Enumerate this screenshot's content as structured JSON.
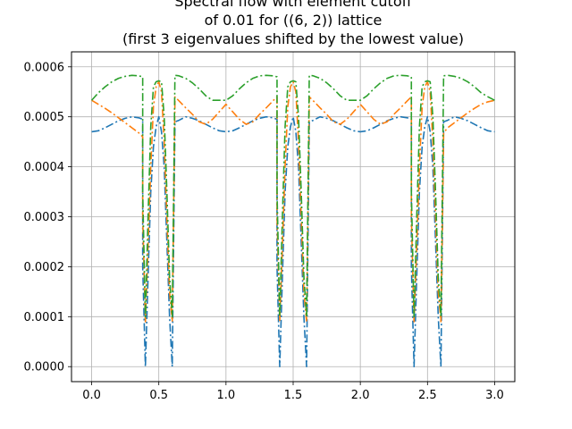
{
  "chart_data": {
    "type": "line",
    "title_lines": [
      "Spectral flow with element cutoff",
      "of 0.01 for ((6, 2)) lattice",
      "(first 3 eigenvalues shifted by the lowest value)"
    ],
    "xlabel": "",
    "ylabel": "",
    "xlim": [
      -0.15,
      3.15
    ],
    "ylim": [
      -3e-05,
      0.00063
    ],
    "x_ticks": [
      "0.0",
      "0.5",
      "1.0",
      "1.5",
      "2.0",
      "2.5",
      "3.0"
    ],
    "x_tick_values": [
      0.0,
      0.5,
      1.0,
      1.5,
      2.0,
      2.5,
      3.0
    ],
    "y_ticks": [
      "0.0000",
      "0.0001",
      "0.0002",
      "0.0003",
      "0.0004",
      "0.0005",
      "0.0006"
    ],
    "y_tick_values": [
      0.0,
      0.0001,
      0.0002,
      0.0003,
      0.0004,
      0.0005,
      0.0006
    ],
    "grid": true,
    "line_style": "dash-dot",
    "series_colors": [
      "#1f77b4",
      "#ff7f0e",
      "#2ca02c"
    ],
    "series": [
      {
        "x": [
          0.0,
          0.05,
          0.1,
          0.15,
          0.2,
          0.25,
          0.3,
          0.35,
          0.38,
          0.38,
          0.4,
          0.42,
          0.44,
          0.46,
          0.48,
          0.5,
          0.52,
          0.54,
          0.56,
          0.58,
          0.6,
          0.62,
          0.62,
          0.65,
          0.7,
          0.75,
          0.8,
          0.85,
          0.9,
          0.95,
          1.0,
          1.05,
          1.1,
          1.15,
          1.2,
          1.25,
          1.3,
          1.35,
          1.38,
          1.38,
          1.4,
          1.42,
          1.44,
          1.46,
          1.48,
          1.5,
          1.52,
          1.54,
          1.56,
          1.58,
          1.6,
          1.62,
          1.62,
          1.65,
          1.7,
          1.75,
          1.8,
          1.85,
          1.9,
          1.95,
          2.0,
          2.05,
          2.1,
          2.15,
          2.2,
          2.25,
          2.3,
          2.35,
          2.38,
          2.38,
          2.4,
          2.42,
          2.44,
          2.46,
          2.48,
          2.5,
          2.52,
          2.54,
          2.56,
          2.58,
          2.6,
          2.62,
          2.62,
          2.65,
          2.7,
          2.75,
          2.8,
          2.85,
          2.9,
          2.95,
          3.0
        ],
        "values": [
          0.00047,
          0.000472,
          0.000478,
          0.000485,
          0.000492,
          0.000497,
          0.0005,
          0.000498,
          0.000495,
          0.0002,
          0.0,
          0.00018,
          0.00035,
          0.00044,
          0.00048,
          0.0005,
          0.00047,
          0.0004,
          0.00025,
          0.0001,
          0.0,
          0.00048,
          0.00049,
          0.000493,
          0.0005,
          0.000497,
          0.000492,
          0.000485,
          0.000478,
          0.000472,
          0.00047,
          0.000472,
          0.000478,
          0.000485,
          0.000492,
          0.000497,
          0.0005,
          0.000498,
          0.000495,
          0.0002,
          0.0,
          0.00018,
          0.00035,
          0.00044,
          0.00048,
          0.0005,
          0.00047,
          0.0004,
          0.00025,
          0.0001,
          0.0,
          0.00048,
          0.00049,
          0.000493,
          0.0005,
          0.000497,
          0.000492,
          0.000485,
          0.000478,
          0.000472,
          0.00047,
          0.000472,
          0.000478,
          0.000485,
          0.000492,
          0.000497,
          0.0005,
          0.000498,
          0.000495,
          0.0002,
          0.0,
          0.00018,
          0.00035,
          0.00044,
          0.00048,
          0.0005,
          0.00047,
          0.0004,
          0.00025,
          0.0001,
          0.0,
          0.00048,
          0.00049,
          0.000493,
          0.0005,
          0.000497,
          0.000492,
          0.000485,
          0.000478,
          0.000472,
          0.00047
        ]
      },
      {
        "x": [
          0.0,
          0.05,
          0.1,
          0.15,
          0.2,
          0.25,
          0.3,
          0.35,
          0.38,
          0.38,
          0.4,
          0.42,
          0.44,
          0.46,
          0.48,
          0.5,
          0.52,
          0.54,
          0.56,
          0.58,
          0.6,
          0.62,
          0.62,
          0.65,
          0.7,
          0.75,
          0.8,
          0.85,
          0.9,
          0.95,
          1.0,
          1.05,
          1.1,
          1.15,
          1.2,
          1.25,
          1.3,
          1.35,
          1.38,
          1.38,
          1.4,
          1.42,
          1.44,
          1.46,
          1.48,
          1.5,
          1.52,
          1.54,
          1.56,
          1.58,
          1.6,
          1.62,
          1.62,
          1.65,
          1.7,
          1.75,
          1.8,
          1.85,
          1.9,
          1.95,
          2.0,
          2.05,
          2.1,
          2.15,
          2.2,
          2.25,
          2.3,
          2.35,
          2.38,
          2.38,
          2.4,
          2.42,
          2.44,
          2.46,
          2.48,
          2.5,
          2.52,
          2.54,
          2.56,
          2.58,
          2.6,
          2.62,
          2.62,
          2.65,
          2.7,
          2.75,
          2.8,
          2.85,
          2.9,
          2.95,
          3.0
        ],
        "values": [
          0.000533,
          0.000525,
          0.000517,
          0.000508,
          0.000498,
          0.000488,
          0.000478,
          0.000468,
          0.00046,
          0.0003,
          9e-05,
          0.00024,
          0.0004,
          0.00052,
          0.00056,
          0.00057,
          0.00055,
          0.00045,
          0.0003,
          0.00015,
          9e-05,
          0.00053,
          0.00054,
          0.000532,
          0.000518,
          0.000505,
          0.00049,
          0.000485,
          0.000495,
          0.00051,
          0.000525,
          0.00051,
          0.000495,
          0.000485,
          0.00049,
          0.000505,
          0.000518,
          0.000532,
          0.00054,
          0.0003,
          9e-05,
          0.00024,
          0.0004,
          0.00052,
          0.00056,
          0.00057,
          0.00055,
          0.00045,
          0.0003,
          0.00015,
          9e-05,
          0.00053,
          0.00054,
          0.000532,
          0.000518,
          0.000505,
          0.00049,
          0.000485,
          0.000495,
          0.00051,
          0.000525,
          0.00051,
          0.000495,
          0.000485,
          0.00049,
          0.000505,
          0.000518,
          0.000532,
          0.00054,
          0.0003,
          9e-05,
          0.00024,
          0.0004,
          0.00052,
          0.00056,
          0.00057,
          0.00055,
          0.00045,
          0.0003,
          0.00015,
          9e-05,
          0.00046,
          0.000468,
          0.000478,
          0.000488,
          0.000498,
          0.000508,
          0.000517,
          0.000525,
          0.00053,
          0.000533
        ]
      },
      {
        "x": [
          0.0,
          0.05,
          0.1,
          0.15,
          0.2,
          0.25,
          0.3,
          0.35,
          0.38,
          0.38,
          0.4,
          0.42,
          0.44,
          0.46,
          0.48,
          0.5,
          0.52,
          0.54,
          0.56,
          0.58,
          0.6,
          0.62,
          0.62,
          0.65,
          0.7,
          0.75,
          0.8,
          0.85,
          0.9,
          0.95,
          1.0,
          1.05,
          1.1,
          1.15,
          1.2,
          1.25,
          1.3,
          1.35,
          1.38,
          1.38,
          1.4,
          1.42,
          1.44,
          1.46,
          1.48,
          1.5,
          1.52,
          1.54,
          1.56,
          1.58,
          1.6,
          1.62,
          1.62,
          1.65,
          1.7,
          1.75,
          1.8,
          1.85,
          1.9,
          1.95,
          2.0,
          2.05,
          2.1,
          2.15,
          2.2,
          2.25,
          2.3,
          2.35,
          2.38,
          2.38,
          2.4,
          2.42,
          2.44,
          2.46,
          2.48,
          2.5,
          2.52,
          2.54,
          2.56,
          2.58,
          2.6,
          2.62,
          2.62,
          2.65,
          2.7,
          2.75,
          2.8,
          2.85,
          2.9,
          2.95,
          3.0
        ],
        "values": [
          0.000533,
          0.000548,
          0.00056,
          0.00057,
          0.000577,
          0.000581,
          0.000583,
          0.000582,
          0.00058,
          0.00035,
          0.0001,
          0.0003,
          0.00048,
          0.00056,
          0.00057,
          0.000572,
          0.00057,
          0.0005,
          0.00035,
          0.00018,
          0.0001,
          0.000582,
          0.000583,
          0.000582,
          0.000577,
          0.000568,
          0.000556,
          0.000542,
          0.000533,
          0.000533,
          0.000533,
          0.000542,
          0.000556,
          0.000568,
          0.000577,
          0.000582,
          0.000583,
          0.000582,
          0.00058,
          0.00035,
          0.0001,
          0.0003,
          0.00048,
          0.00056,
          0.00057,
          0.000572,
          0.00057,
          0.0005,
          0.00035,
          0.00018,
          0.0001,
          0.000582,
          0.000583,
          0.000582,
          0.000577,
          0.000568,
          0.000556,
          0.000542,
          0.000533,
          0.000533,
          0.000533,
          0.000542,
          0.000556,
          0.000568,
          0.000577,
          0.000582,
          0.000583,
          0.000582,
          0.00058,
          0.00035,
          0.0001,
          0.0003,
          0.00048,
          0.00056,
          0.00057,
          0.000572,
          0.00057,
          0.0005,
          0.00035,
          0.00018,
          0.0001,
          0.00058,
          0.000582,
          0.000583,
          0.000581,
          0.000577,
          0.00057,
          0.00056,
          0.000548,
          0.00054,
          0.000533
        ]
      }
    ]
  }
}
